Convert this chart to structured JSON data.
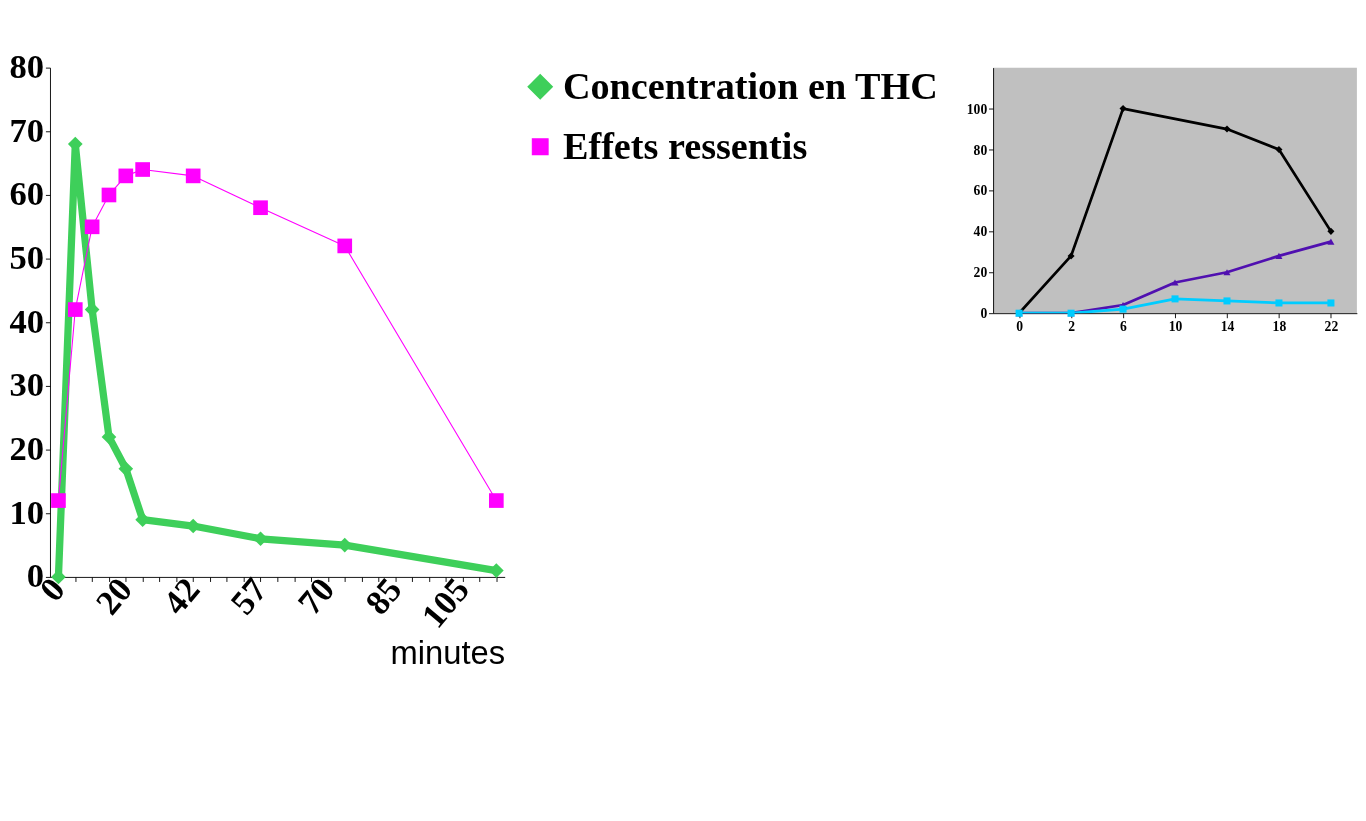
{
  "chart_data": [
    {
      "type": "line",
      "xlabel": "minutes",
      "categories": [
        "0",
        null,
        null,
        null,
        "20",
        null,
        null,
        null,
        "42",
        null,
        null,
        null,
        "57",
        null,
        null,
        null,
        "70",
        null,
        null,
        null,
        "85",
        null,
        null,
        null,
        "105",
        null,
        null
      ],
      "series": [
        {
          "name": "Concentration en THC",
          "color": "#3ecf5a",
          "marker": "diamond",
          "values": [
            0,
            68,
            42,
            22,
            17,
            9,
            null,
            null,
            8,
            null,
            null,
            null,
            6,
            null,
            null,
            null,
            null,
            5,
            null,
            null,
            null,
            null,
            null,
            null,
            null,
            null,
            1
          ]
        },
        {
          "name": "Effets ressentis",
          "color": "#ff00ff",
          "marker": "square",
          "values": [
            12,
            42,
            55,
            60,
            63,
            64,
            null,
            null,
            63,
            null,
            null,
            null,
            58,
            null,
            null,
            null,
            null,
            52,
            null,
            null,
            null,
            null,
            null,
            null,
            null,
            null,
            12
          ]
        }
      ],
      "ylim": [
        0,
        80
      ],
      "yticks": [
        0,
        10,
        20,
        30,
        40,
        50,
        60,
        70,
        80
      ],
      "grid": false,
      "legend": "right"
    },
    {
      "type": "line",
      "categories": [
        "0",
        "2",
        "6",
        "10",
        "14",
        "18",
        "22"
      ],
      "series": [
        {
          "color": "#000000",
          "marker": "diamond",
          "values": [
            0,
            28,
            100,
            null,
            90,
            80,
            40
          ]
        },
        {
          "color": "#5010b0",
          "marker": "triangle",
          "values": [
            0,
            0,
            4,
            15,
            20,
            28,
            35
          ]
        },
        {
          "color": "#00ccff",
          "marker": "square",
          "values": [
            0,
            0,
            2,
            7,
            6,
            5,
            5
          ]
        }
      ],
      "ylim": [
        0,
        120
      ],
      "yticks": [
        0,
        20,
        40,
        60,
        80,
        100
      ],
      "grid": false,
      "legend": false
    }
  ]
}
